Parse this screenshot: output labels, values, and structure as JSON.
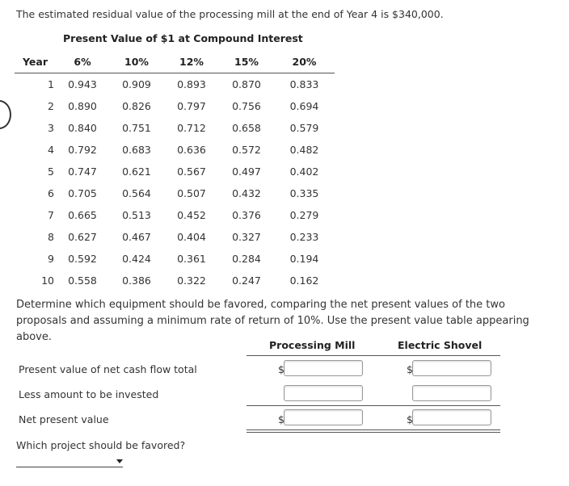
{
  "intro_text": "The estimated residual value of the processing mill at the end of Year 4 is $340,000.",
  "pv_table": {
    "title": "Present Value of $1 at Compound Interest",
    "headers": [
      "Year",
      "6%",
      "10%",
      "12%",
      "15%",
      "20%"
    ],
    "rows": [
      [
        "1",
        "0.943",
        "0.909",
        "0.893",
        "0.870",
        "0.833"
      ],
      [
        "2",
        "0.890",
        "0.826",
        "0.797",
        "0.756",
        "0.694"
      ],
      [
        "3",
        "0.840",
        "0.751",
        "0.712",
        "0.658",
        "0.579"
      ],
      [
        "4",
        "0.792",
        "0.683",
        "0.636",
        "0.572",
        "0.482"
      ],
      [
        "5",
        "0.747",
        "0.621",
        "0.567",
        "0.497",
        "0.402"
      ],
      [
        "6",
        "0.705",
        "0.564",
        "0.507",
        "0.432",
        "0.335"
      ],
      [
        "7",
        "0.665",
        "0.513",
        "0.452",
        "0.376",
        "0.279"
      ],
      [
        "8",
        "0.627",
        "0.467",
        "0.404",
        "0.327",
        "0.233"
      ],
      [
        "9",
        "0.592",
        "0.424",
        "0.361",
        "0.284",
        "0.194"
      ],
      [
        "10",
        "0.558",
        "0.386",
        "0.322",
        "0.247",
        "0.162"
      ]
    ]
  },
  "instructions": "Determine which equipment should be favored, comparing the net present values of the two proposals and assuming a minimum rate of return of 10%. Use the present value table appearing above.",
  "npv": {
    "col_processing_mill": "Processing Mill",
    "col_electric_shovel": "Electric Shovel",
    "row_pv_total": "Present value of net cash flow total",
    "row_less_invested": "Less amount to be invested",
    "row_npv": "Net present value",
    "currency": "$",
    "values": {
      "pm_pv_total": "",
      "pm_invested": "",
      "pm_npv": "",
      "es_pv_total": "",
      "es_invested": "",
      "es_npv": ""
    }
  },
  "question": "Which project should be favored?",
  "favored_selection": ""
}
